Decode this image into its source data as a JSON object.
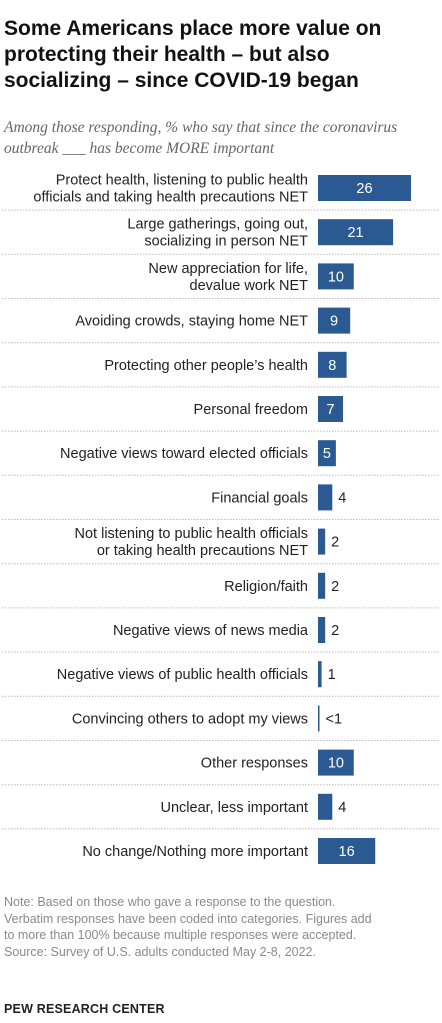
{
  "title": "Some Americans place more value on protecting their health – but also socializing – since COVID-19 began",
  "subtitle": "Among those responding, % who say that since the coronavirus outbreak ___ has become MORE important",
  "note_lines": [
    "Note: Based on those who gave a response to the question.",
    "Verbatim responses have been coded into categories. Figures add",
    "to more than 100% because multiple responses were accepted.",
    "Source: Survey of U.S. adults conducted May 2-8, 2022."
  ],
  "footer": "PEW RESEARCH CENTER",
  "colors": {
    "bar": "#2b5a93",
    "separator": "#bbbbbb",
    "label": "#222222"
  },
  "chart_data": {
    "type": "bar",
    "orientation": "horizontal",
    "categories": [
      [
        "Protect health, listening to public health",
        "officials and taking health precautions NET"
      ],
      [
        "Large gatherings, going out,",
        "socializing in person NET"
      ],
      [
        "New appreciation for life,",
        "devalue work NET"
      ],
      [
        "Avoiding crowds, staying home NET"
      ],
      [
        "Protecting other people’s health"
      ],
      [
        "Personal freedom"
      ],
      [
        "Negative views toward elected officials"
      ],
      [
        "Financial goals"
      ],
      [
        "Not listening to public health officials",
        "or taking health precautions NET"
      ],
      [
        "Religion/faith"
      ],
      [
        "Negative views of news media"
      ],
      [
        "Negative views of public health officials"
      ],
      [
        "Convincing others to adopt my views"
      ],
      [
        "Other responses"
      ],
      [
        "Unclear, less important"
      ],
      [
        "No change/Nothing more important"
      ]
    ],
    "values": [
      26,
      21,
      10,
      9,
      8,
      7,
      5,
      4,
      2,
      2,
      2,
      1,
      0.3,
      10,
      4,
      16
    ],
    "value_labels": [
      "26",
      "21",
      "10",
      "9",
      "8",
      "7",
      "5",
      "4",
      "2",
      "2",
      "2",
      "1",
      "<1",
      "10",
      "4",
      "16"
    ],
    "label_inside": [
      true,
      true,
      true,
      true,
      true,
      true,
      true,
      false,
      false,
      false,
      false,
      false,
      false,
      true,
      false,
      true
    ],
    "xlim": [
      0,
      26
    ],
    "grid": false,
    "legend": "none"
  }
}
